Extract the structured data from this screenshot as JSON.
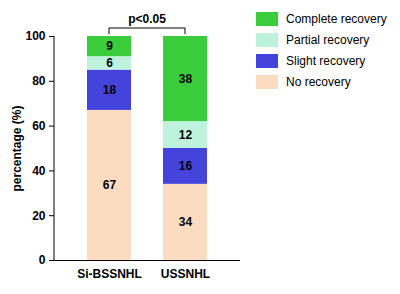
{
  "chart_data": {
    "type": "bar",
    "stacked": true,
    "data_labels": true,
    "categories": [
      "Si-BSSNHL",
      "USSNHL"
    ],
    "series": [
      {
        "name": "No recovery",
        "color": "#fcdcc0",
        "values": [
          67,
          34
        ]
      },
      {
        "name": "Slight recovery",
        "color": "#4444dd",
        "values": [
          18,
          16
        ]
      },
      {
        "name": "Partial recovery",
        "color": "#bff2dc",
        "values": [
          6,
          12
        ]
      },
      {
        "name": "Complete recovery",
        "color": "#3acc3a",
        "values": [
          9,
          38
        ]
      }
    ],
    "ylabel": "percentage (%)",
    "ylim": [
      0,
      100
    ],
    "yticks": [
      0,
      20,
      40,
      60,
      80,
      100
    ],
    "legend": "right",
    "annotations": [
      {
        "text": "p<0.05"
      }
    ]
  }
}
